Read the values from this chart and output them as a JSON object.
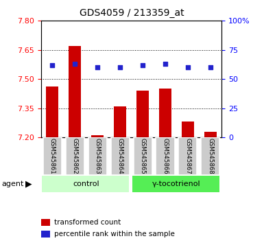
{
  "title": "GDS4059 / 213359_at",
  "samples": [
    "GSM545861",
    "GSM545862",
    "GSM545863",
    "GSM545864",
    "GSM545865",
    "GSM545866",
    "GSM545867",
    "GSM545868"
  ],
  "bar_values": [
    7.46,
    7.67,
    7.21,
    7.36,
    7.44,
    7.45,
    7.28,
    7.23
  ],
  "scatter_values": [
    62,
    63,
    60,
    60,
    62,
    63,
    60,
    60
  ],
  "ylim_left": [
    7.2,
    7.8
  ],
  "ylim_right": [
    0,
    100
  ],
  "yticks_left": [
    7.2,
    7.35,
    7.5,
    7.65,
    7.8
  ],
  "yticks_right": [
    0,
    25,
    50,
    75,
    100
  ],
  "bar_color": "#cc0000",
  "scatter_color": "#2222cc",
  "bar_bottom": 7.2,
  "groups": [
    {
      "label": "control",
      "start": 0,
      "end": 4,
      "color": "#ccffcc"
    },
    {
      "label": "γ-tocotrienol",
      "start": 4,
      "end": 8,
      "color": "#55ee55"
    }
  ],
  "agent_label": "agent",
  "legend_items": [
    {
      "color": "#cc0000",
      "label": "transformed count"
    },
    {
      "color": "#2222cc",
      "label": "percentile rank within the sample"
    }
  ],
  "sample_bg": "#cccccc",
  "plot_bg": "#ffffff"
}
